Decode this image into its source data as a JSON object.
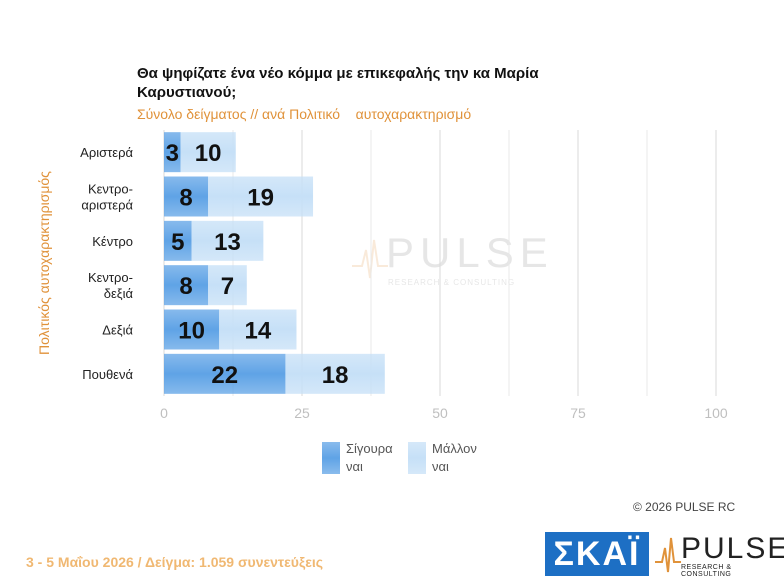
{
  "header": {
    "title": "Θα ψηφίζατε ένα νέο κόμμα με επικεφαλής την κα Μαρία Καρυστιανού;",
    "subtitle": "Σύνολο δείγματος // ανά Πολιτικό    αυτοχαρακτηρισμό"
  },
  "chart_data": {
    "type": "bar",
    "orientation": "horizontal",
    "stacked": true,
    "categories": [
      "Αριστερά",
      "Κεντρο-αριστερά",
      "Κέντρο",
      "Κεντρο-δεξιά",
      "Δεξιά",
      "Πουθενά"
    ],
    "series": [
      {
        "name": "Σίγουρα ναι",
        "values": [
          3,
          8,
          5,
          8,
          10,
          22
        ],
        "color": "#5fa3e6"
      },
      {
        "name": "Μάλλον ναι",
        "values": [
          10,
          19,
          13,
          7,
          14,
          18
        ],
        "color": "#c6e0f7"
      }
    ],
    "xticks": [
      0,
      25,
      50,
      75,
      100
    ],
    "xlim": [
      0,
      100
    ],
    "ylabel": "Πολιτικός αυτοχαρακτηρισμός",
    "legend_position": "bottom",
    "grid": true
  },
  "category_lines": [
    [
      "Αριστερά"
    ],
    [
      "Κεντρο-",
      "αριστερά"
    ],
    [
      "Κέντρο"
    ],
    [
      "Κεντρο-",
      "δεξιά"
    ],
    [
      "Δεξιά"
    ],
    [
      "Πουθενά"
    ]
  ],
  "legend": [
    {
      "line1": "Σίγουρα",
      "line2": "ναι"
    },
    {
      "line1": "Μάλλον",
      "line2": "ναι"
    }
  ],
  "copyright": "©  2026  PULSE RC",
  "footer": "3 - 5  Μαΐου 2026  /  Δείγμα:  1.059 συνεντεύξεις",
  "logos": {
    "skai": "ΣΚΑΪ",
    "pulse": "PULSE",
    "pulse_sub": "RESEARCH & CONSULTING"
  },
  "watermark": {
    "name": "PULSE",
    "sub": "RESEARCH & CONSULTING"
  }
}
